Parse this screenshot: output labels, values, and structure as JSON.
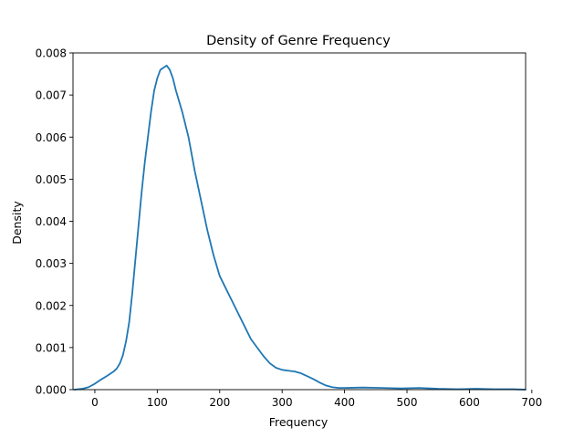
{
  "chart_data": {
    "type": "line",
    "title": "Density of Genre Frequency",
    "xlabel": "Frequency",
    "ylabel": "Density",
    "xlim": [
      -35,
      690
    ],
    "ylim": [
      0,
      0.008
    ],
    "xticks": [
      0,
      100,
      200,
      300,
      400,
      500,
      600,
      700
    ],
    "xtick_labels": [
      "0",
      "100",
      "200",
      "300",
      "400",
      "500",
      "600",
      "700"
    ],
    "yticks": [
      0,
      0.001,
      0.002,
      0.003,
      0.004,
      0.005,
      0.006,
      0.007,
      0.008
    ],
    "ytick_labels": [
      "0.000",
      "0.001",
      "0.002",
      "0.003",
      "0.004",
      "0.005",
      "0.006",
      "0.007",
      "0.008"
    ],
    "grid": false,
    "series": [
      {
        "color": "#1f77b4",
        "x": [
          -33,
          -20,
          -10,
          0,
          10,
          20,
          30,
          35,
          40,
          45,
          50,
          55,
          60,
          65,
          70,
          75,
          80,
          85,
          90,
          95,
          100,
          105,
          110,
          115,
          120,
          125,
          130,
          140,
          150,
          160,
          170,
          180,
          190,
          200,
          210,
          220,
          230,
          240,
          250,
          260,
          270,
          280,
          290,
          300,
          310,
          320,
          330,
          340,
          350,
          360,
          370,
          380,
          390,
          400,
          430,
          460,
          490,
          520,
          550,
          580,
          610,
          640,
          670,
          690
        ],
        "y": [
          0.0,
          2e-05,
          6e-05,
          0.00014,
          0.00024,
          0.00033,
          0.00043,
          0.0005,
          0.00062,
          0.00082,
          0.00115,
          0.0016,
          0.0023,
          0.0031,
          0.0039,
          0.0047,
          0.0054,
          0.006,
          0.0066,
          0.0071,
          0.0074,
          0.0076,
          0.00765,
          0.0077,
          0.0076,
          0.0074,
          0.0071,
          0.0066,
          0.006,
          0.0052,
          0.0045,
          0.0038,
          0.0032,
          0.0027,
          0.0024,
          0.0021,
          0.0018,
          0.0015,
          0.0012,
          0.001,
          0.0008,
          0.00063,
          0.00052,
          0.00047,
          0.00045,
          0.00043,
          0.00039,
          0.00032,
          0.00025,
          0.00017,
          0.0001,
          6e-05,
          4e-05,
          4e-05,
          5e-05,
          4e-05,
          3e-05,
          4e-05,
          2e-05,
          1e-05,
          2e-05,
          1e-05,
          1e-05,
          0.0
        ]
      }
    ]
  }
}
